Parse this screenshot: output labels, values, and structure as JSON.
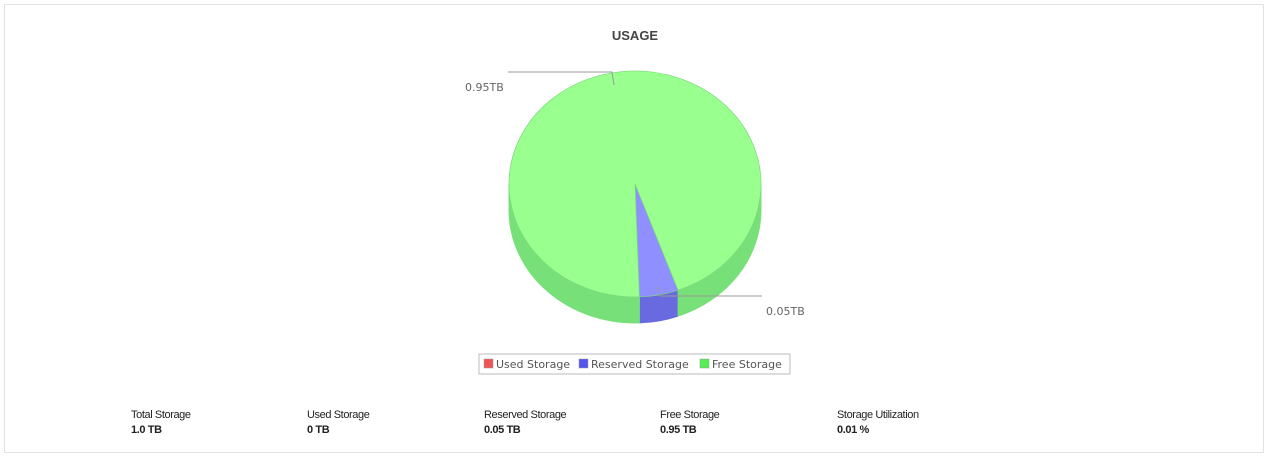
{
  "chart_data": {
    "type": "pie",
    "title": "USAGE",
    "three_d": true,
    "slices": [
      {
        "name": "Used Storage",
        "value": 0,
        "color": "#ee5555"
      },
      {
        "name": "Reserved Storage",
        "value": 0.05,
        "color": "#5555ee",
        "label": "0.05TB"
      },
      {
        "name": "Free Storage",
        "value": 0.95,
        "color": "#55ee55",
        "label": "0.95TB"
      }
    ],
    "legend": {
      "placement": "bottom",
      "items": [
        "Used Storage",
        "Reserved Storage",
        "Free Storage"
      ]
    }
  },
  "summary": [
    {
      "label": "Total Storage",
      "value": "1.0 TB"
    },
    {
      "label": "Used Storage",
      "value": "0 TB"
    },
    {
      "label": "Reserved Storage",
      "value": "0.05 TB"
    },
    {
      "label": "Free Storage",
      "value": "0.95 TB"
    },
    {
      "label": "Storage Utilization",
      "value": "0.01 %"
    }
  ]
}
